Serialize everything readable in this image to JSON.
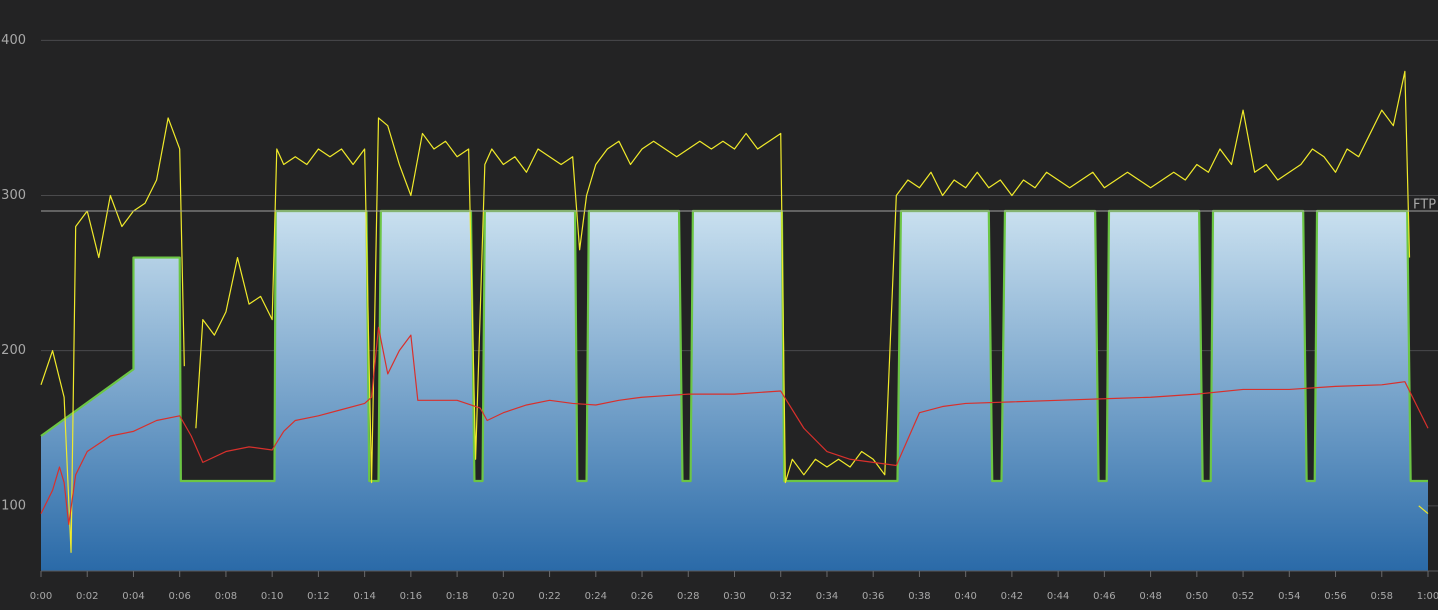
{
  "chart_data": {
    "type": "line",
    "xlim": [
      0,
      60
    ],
    "ylim": [
      58,
      426
    ],
    "xticks": [
      {
        "value": 0,
        "label": "0:00"
      },
      {
        "value": 2,
        "label": "0:02"
      },
      {
        "value": 4,
        "label": "0:04"
      },
      {
        "value": 6,
        "label": "0:06"
      },
      {
        "value": 8,
        "label": "0:08"
      },
      {
        "value": 10,
        "label": "0:10"
      },
      {
        "value": 12,
        "label": "0:12"
      },
      {
        "value": 14,
        "label": "0:14"
      },
      {
        "value": 16,
        "label": "0:16"
      },
      {
        "value": 18,
        "label": "0:18"
      },
      {
        "value": 20,
        "label": "0:20"
      },
      {
        "value": 22,
        "label": "0:22"
      },
      {
        "value": 24,
        "label": "0:24"
      },
      {
        "value": 26,
        "label": "0:26"
      },
      {
        "value": 28,
        "label": "0:28"
      },
      {
        "value": 30,
        "label": "0:30"
      },
      {
        "value": 32,
        "label": "0:32"
      },
      {
        "value": 34,
        "label": "0:34"
      },
      {
        "value": 36,
        "label": "0:36"
      },
      {
        "value": 38,
        "label": "0:38"
      },
      {
        "value": 40,
        "label": "0:40"
      },
      {
        "value": 42,
        "label": "0:42"
      },
      {
        "value": 44,
        "label": "0:44"
      },
      {
        "value": 46,
        "label": "0:46"
      },
      {
        "value": 48,
        "label": "0:48"
      },
      {
        "value": 50,
        "label": "0:50"
      },
      {
        "value": 52,
        "label": "0:52"
      },
      {
        "value": 54,
        "label": "0:54"
      },
      {
        "value": 56,
        "label": "0:56"
      },
      {
        "value": 58,
        "label": "0:58"
      },
      {
        "value": 60,
        "label": "1:00"
      }
    ],
    "yticks": [
      100,
      200,
      300,
      400
    ],
    "grid": true,
    "reference_line": {
      "value": 290,
      "label": "FTP",
      "color": "#a0a0a0"
    },
    "series": [
      {
        "style": "area",
        "color": "#6cc644",
        "fill_colors": [
          "#c9e0ef",
          "#2a6aa8"
        ],
        "x": [
          0,
          4,
          4,
          6,
          6.05,
          10.1,
          10.15,
          14.08,
          14.2,
          14.6,
          14.7,
          18.6,
          18.75,
          19.1,
          19.2,
          23.1,
          23.2,
          23.6,
          23.7,
          27.6,
          27.75,
          28.1,
          28.2,
          32.05,
          32.15,
          37.05,
          37.2,
          41.0,
          41.15,
          41.55,
          41.7,
          45.6,
          45.75,
          46.1,
          46.2,
          50.1,
          50.25,
          50.6,
          50.7,
          54.6,
          54.75,
          55.1,
          55.2,
          59.1,
          59.25,
          60
        ],
        "values": [
          145,
          188,
          260,
          260,
          116,
          116,
          290,
          290,
          116,
          116,
          290,
          290,
          116,
          116,
          290,
          290,
          116,
          116,
          290,
          290,
          116,
          116,
          290,
          290,
          116,
          116,
          290,
          290,
          116,
          116,
          290,
          290,
          116,
          116,
          290,
          290,
          116,
          116,
          290,
          290,
          116,
          116,
          290,
          290,
          116,
          116
        ]
      },
      {
        "style": "line",
        "color": "#f0ea2a",
        "x": [
          0,
          0.5,
          1,
          1.3,
          1.5,
          2,
          2.5,
          3,
          3.5,
          4,
          4.5,
          5,
          5.5,
          6,
          6.2,
          6.5,
          6.7,
          7,
          7.5,
          8,
          8.5,
          9,
          9.5,
          10,
          10.2,
          10.5,
          11,
          11.5,
          12,
          12.5,
          13,
          13.5,
          14,
          14.3,
          14.6,
          15,
          15.5,
          16,
          16.5,
          17,
          17.5,
          18,
          18.5,
          18.8,
          19.2,
          19.5,
          20,
          20.5,
          21,
          21.5,
          22,
          22.5,
          23,
          23.3,
          23.6,
          24,
          24.5,
          25,
          25.5,
          26,
          26.5,
          27,
          27.5,
          28,
          28.5,
          29,
          29.5,
          30,
          30.5,
          31,
          31.5,
          32,
          32.2,
          32.5,
          33,
          33.5,
          34,
          34.5,
          35,
          35.5,
          36,
          36.5,
          37,
          37.5,
          38,
          38.5,
          39,
          39.5,
          40,
          40.5,
          41,
          41.5,
          42,
          42.5,
          43,
          43.5,
          44,
          44.5,
          45,
          45.5,
          46,
          46.5,
          47,
          47.5,
          48,
          48.5,
          49,
          49.5,
          50,
          50.5,
          51,
          51.5,
          52,
          52.5,
          53,
          53.5,
          54,
          54.5,
          55,
          55.5,
          56,
          56.5,
          57,
          57.5,
          58,
          58.5,
          59,
          59.2,
          59.4,
          59.6,
          60
        ],
        "values": [
          178,
          200,
          170,
          70,
          280,
          290,
          260,
          300,
          280,
          290,
          295,
          310,
          350,
          330,
          190,
          null,
          150,
          220,
          210,
          225,
          260,
          230,
          235,
          220,
          330,
          320,
          325,
          320,
          330,
          325,
          330,
          320,
          330,
          115,
          350,
          345,
          320,
          300,
          340,
          330,
          335,
          325,
          330,
          130,
          320,
          330,
          320,
          325,
          315,
          330,
          325,
          320,
          325,
          265,
          300,
          320,
          330,
          335,
          320,
          330,
          335,
          330,
          325,
          330,
          335,
          330,
          335,
          330,
          340,
          330,
          335,
          340,
          115,
          130,
          120,
          130,
          125,
          130,
          125,
          135,
          130,
          120,
          300,
          310,
          305,
          315,
          300,
          310,
          305,
          315,
          305,
          310,
          300,
          310,
          305,
          315,
          310,
          305,
          310,
          315,
          305,
          310,
          315,
          310,
          305,
          310,
          315,
          310,
          320,
          315,
          330,
          320,
          355,
          315,
          320,
          310,
          315,
          320,
          330,
          325,
          315,
          330,
          325,
          340,
          355,
          345,
          380,
          260,
          null,
          100,
          95
        ]
      },
      {
        "style": "line",
        "color": "#d8302c",
        "x": [
          0,
          0.5,
          0.8,
          1,
          1.2,
          1.5,
          2,
          3,
          4,
          5,
          6,
          6.5,
          7,
          8,
          9,
          10,
          10.5,
          11,
          12,
          13,
          14,
          14.3,
          14.6,
          15,
          15.5,
          16,
          16.3,
          17,
          18,
          19,
          19.3,
          20,
          21,
          22,
          23,
          24,
          25,
          26,
          27,
          28,
          30,
          32,
          33,
          34,
          35,
          36,
          37,
          38,
          39,
          40,
          42,
          44,
          46,
          48,
          50,
          52,
          54,
          56,
          58,
          59,
          60
        ],
        "values": [
          95,
          110,
          125,
          115,
          88,
          120,
          135,
          145,
          148,
          155,
          158,
          145,
          128,
          135,
          138,
          136,
          148,
          155,
          158,
          162,
          166,
          170,
          215,
          185,
          200,
          210,
          168,
          168,
          168,
          163,
          155,
          160,
          165,
          168,
          166,
          165,
          168,
          170,
          171,
          172,
          172,
          174,
          150,
          135,
          130,
          128,
          126,
          160,
          164,
          166,
          167,
          168,
          169,
          170,
          172,
          175,
          175,
          177,
          178,
          180,
          150
        ]
      }
    ]
  }
}
